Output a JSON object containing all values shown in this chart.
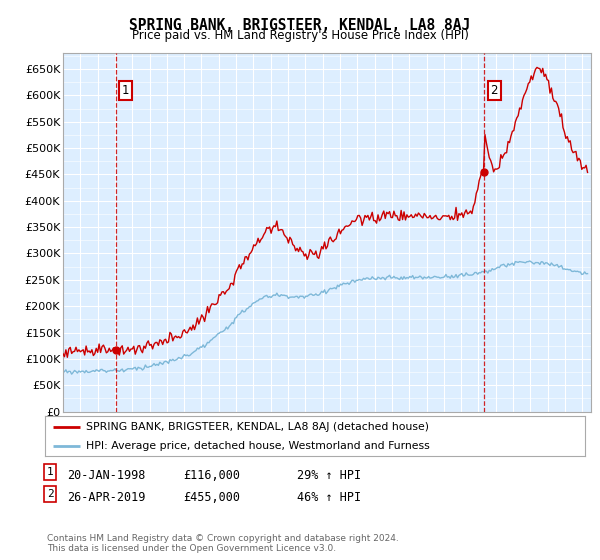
{
  "title": "SPRING BANK, BRIGSTEER, KENDAL, LA8 8AJ",
  "subtitle": "Price paid vs. HM Land Registry's House Price Index (HPI)",
  "legend_line1": "SPRING BANK, BRIGSTEER, KENDAL, LA8 8AJ (detached house)",
  "legend_line2": "HPI: Average price, detached house, Westmorland and Furness",
  "footnote": "Contains HM Land Registry data © Crown copyright and database right 2024.\nThis data is licensed under the Open Government Licence v3.0.",
  "annotation1": {
    "label": "1",
    "date": "20-JAN-1998",
    "price": 116000,
    "hpi_change": "29% ↑ HPI"
  },
  "annotation2": {
    "label": "2",
    "date": "26-APR-2019",
    "price": 455000,
    "hpi_change": "46% ↑ HPI"
  },
  "hpi_color": "#7eb8d8",
  "price_color": "#cc0000",
  "background_color": "#ddeeff",
  "grid_color": "#ffffff",
  "ylim": [
    0,
    680000
  ],
  "yticks": [
    0,
    50000,
    100000,
    150000,
    200000,
    250000,
    300000,
    350000,
    400000,
    450000,
    500000,
    550000,
    600000,
    650000
  ],
  "xlim_start": 1995.0,
  "xlim_end": 2025.5,
  "sale1_year": 1998.05,
  "sale1_price": 116000,
  "sale2_year": 2019.3,
  "sale2_price": 455000
}
